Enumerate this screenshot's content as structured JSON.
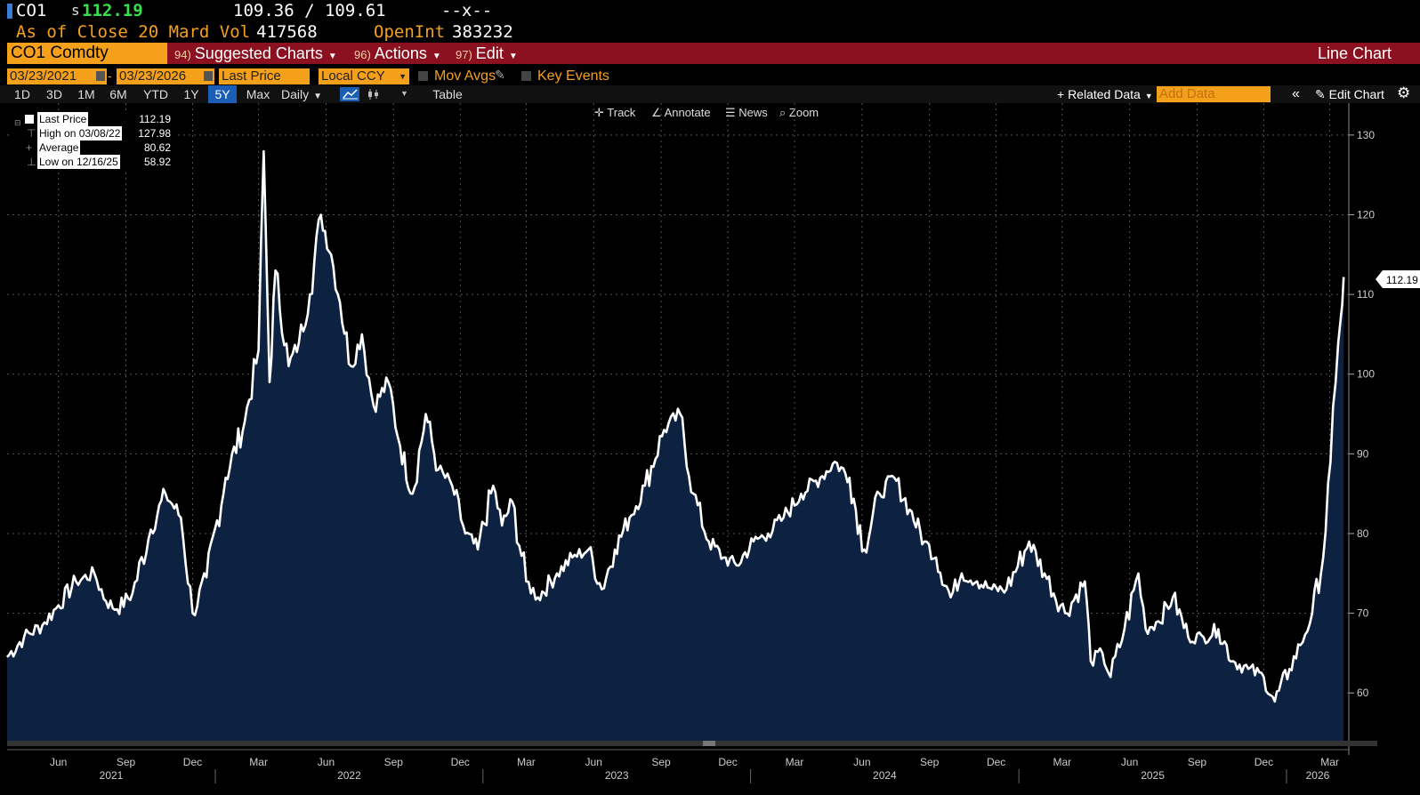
{
  "header": {
    "ticker": "CO1",
    "currency": "s",
    "last_price": "112.19",
    "bid_ask": "109.36 / 109.61",
    "change": "--x--",
    "as_of": "As of Close 20 Mar",
    "vol_label": "d Vol",
    "volume": "417568",
    "open_int_label": "OpenInt",
    "open_int": "383232"
  },
  "menubar": {
    "security": "CO1 Comdty",
    "suggested_num": "94)",
    "suggested_label": "Suggested Charts",
    "actions_num": "96)",
    "actions_label": "Actions",
    "edit_num": "97)",
    "edit_label": "Edit",
    "chart_type": "Line Chart"
  },
  "controls": {
    "start_date": "03/23/2021",
    "dash": "-",
    "end_date": "03/23/2026",
    "field": "Last Price",
    "currency": "Local CCY",
    "mov_avgs": "Mov Avgs",
    "key_events": "Key Events"
  },
  "toolbar": {
    "periods": [
      "1D",
      "3D",
      "1M",
      "6M",
      "YTD",
      "1Y",
      "5Y",
      "Max"
    ],
    "selected_period": "5Y",
    "frequency": "Daily",
    "table": "Table",
    "related_data": "+ Related Data",
    "add_data_placeholder": "Add Data",
    "edit_chart": "Edit Chart"
  },
  "chart_tools": {
    "track": "Track",
    "annotate": "Annotate",
    "news": "News",
    "zoom": "Zoom"
  },
  "legend": {
    "last_label": "Last Price",
    "last_value": "112.19",
    "high_label": "High on 03/08/22",
    "high_value": "127.98",
    "avg_label": "Average",
    "avg_value": "80.62",
    "low_label": "Low on 12/16/25",
    "low_value": "58.92"
  },
  "colors": {
    "accent_orange": "#f5a01a",
    "menubar_red": "#8b1020",
    "last_green": "#35e04a",
    "area_fill": "#0d2140",
    "line": "#ffffff"
  },
  "chart_data": {
    "type": "area",
    "title": "CO1 Comdty Last Price",
    "xlabel": "",
    "ylabel": "",
    "ylim": [
      54,
      134
    ],
    "y_ticks": [
      60,
      70,
      80,
      90,
      100,
      110,
      120,
      130
    ],
    "last_value_label": "112.19",
    "x_month_labels": [
      "Jun",
      "Sep",
      "Dec",
      "Mar",
      "Jun",
      "Sep",
      "Dec",
      "Mar",
      "Jun",
      "Sep",
      "Dec",
      "Mar",
      "Jun",
      "Sep",
      "Dec",
      "Mar",
      "Jun",
      "Sep",
      "Dec",
      "Mar"
    ],
    "x_year_labels": [
      "2021",
      "2022",
      "2023",
      "2024",
      "2025",
      "2026"
    ],
    "series": [
      {
        "name": "Last Price",
        "dates": [
          "2021-03-23",
          "2021-04-15",
          "2021-05-10",
          "2021-06-01",
          "2021-06-25",
          "2021-07-20",
          "2021-08-05",
          "2021-08-20",
          "2021-09-10",
          "2021-10-05",
          "2021-10-25",
          "2021-11-15",
          "2021-12-01",
          "2021-12-20",
          "2022-01-15",
          "2022-02-10",
          "2022-03-01",
          "2022-03-08",
          "2022-03-16",
          "2022-03-24",
          "2022-04-11",
          "2022-04-25",
          "2022-05-10",
          "2022-05-25",
          "2022-06-08",
          "2022-06-20",
          "2022-07-05",
          "2022-07-20",
          "2022-08-05",
          "2022-08-25",
          "2022-09-10",
          "2022-09-27",
          "2022-10-15",
          "2022-11-01",
          "2022-11-20",
          "2022-12-08",
          "2022-12-25",
          "2023-01-15",
          "2023-01-27",
          "2023-02-10",
          "2023-03-01",
          "2023-03-17",
          "2023-04-12",
          "2023-05-03",
          "2023-05-25",
          "2023-06-12",
          "2023-06-30",
          "2023-07-20",
          "2023-08-10",
          "2023-09-05",
          "2023-09-27",
          "2023-10-15",
          "2023-11-05",
          "2023-11-25",
          "2023-12-13",
          "2024-01-05",
          "2024-01-25",
          "2024-02-15",
          "2024-03-10",
          "2024-04-05",
          "2024-04-25",
          "2024-05-15",
          "2024-06-04",
          "2024-06-25",
          "2024-07-15",
          "2024-08-05",
          "2024-08-25",
          "2024-09-10",
          "2024-09-30",
          "2024-10-15",
          "2024-11-05",
          "2024-11-25",
          "2024-12-15",
          "2025-01-15",
          "2025-02-05",
          "2025-03-05",
          "2025-04-01",
          "2025-04-09",
          "2025-04-25",
          "2025-05-06",
          "2025-05-25",
          "2025-06-13",
          "2025-06-23",
          "2025-07-10",
          "2025-07-30",
          "2025-08-20",
          "2025-09-10",
          "2025-09-30",
          "2025-10-20",
          "2025-11-10",
          "2025-12-01",
          "2025-12-16",
          "2026-01-05",
          "2026-01-20",
          "2026-02-05",
          "2026-02-20",
          "2026-03-02",
          "2026-03-09",
          "2026-03-16",
          "2026-03-20"
        ],
        "values": [
          64.5,
          67,
          68.5,
          71,
          74,
          75,
          71.5,
          70.5,
          72.5,
          80.5,
          85,
          82,
          70,
          74.5,
          87,
          94,
          103,
          127.98,
          99,
          113,
          101,
          104,
          110,
          120,
          115,
          109,
          101,
          105,
          96,
          99,
          91,
          85,
          95,
          88,
          86,
          80,
          78,
          86,
          81,
          84,
          74,
          72,
          75,
          77,
          78,
          73,
          78,
          82,
          86,
          93,
          95,
          85,
          79,
          77,
          76,
          79,
          80,
          82,
          85,
          87,
          89,
          87,
          78,
          85,
          87,
          83,
          79,
          77,
          72,
          75,
          74,
          73,
          73,
          79,
          75,
          70,
          74,
          64,
          65,
          62,
          68,
          75,
          68,
          69,
          72,
          67,
          67,
          68,
          64,
          63,
          62,
          58.92,
          63,
          66,
          70,
          77,
          89,
          99,
          107,
          112.19
        ]
      }
    ]
  }
}
